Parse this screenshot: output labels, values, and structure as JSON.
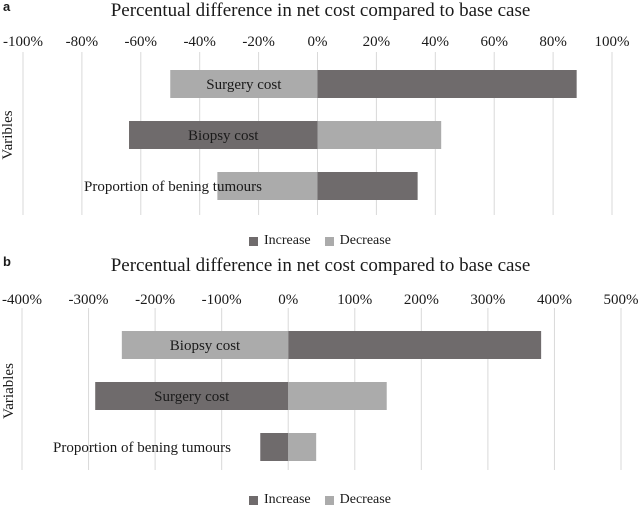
{
  "colors": {
    "increase": "#6f6b6c",
    "decrease": "#ababab",
    "grid": "#d9d9d9"
  },
  "legend": {
    "increase_label": "Increase",
    "decrease_label": "Decrease"
  },
  "chart_data": [
    {
      "panel_label": "a",
      "type": "bar",
      "orientation": "horizontal",
      "title": "Percentual difference in net cost compared to base case",
      "ylabel": "Varibles",
      "xlim": [
        -100,
        100
      ],
      "ticks": [
        -100,
        -80,
        -60,
        -40,
        -20,
        0,
        20,
        40,
        60,
        80,
        100
      ],
      "tick_labels": [
        "-100%",
        "-80%",
        "-60%",
        "-40%",
        "-20%",
        "0%",
        "20%",
        "40%",
        "60%",
        "80%",
        "100%"
      ],
      "grid": true,
      "legend_position": "bottom",
      "categories": [
        "Surgery cost",
        "Biopsy cost",
        "Proportion of bening tumours"
      ],
      "series": [
        {
          "name": "Increase",
          "values": [
            88,
            -64,
            34
          ]
        },
        {
          "name": "Decrease",
          "values": [
            -50,
            42,
            -34
          ]
        }
      ]
    },
    {
      "panel_label": "b",
      "type": "bar",
      "orientation": "horizontal",
      "title": "Percentual difference in net cost compared to base case",
      "ylabel": "Variables",
      "xlim": [
        -400,
        500
      ],
      "ticks": [
        -400,
        -300,
        -200,
        -100,
        0,
        100,
        200,
        300,
        400,
        500
      ],
      "tick_labels": [
        "-400%",
        "-300%",
        "-200%",
        "-100%",
        "0%",
        "100%",
        "200%",
        "300%",
        "400%",
        "500%"
      ],
      "grid": true,
      "legend_position": "bottom",
      "categories": [
        "Biopsy cost",
        "Surgery cost",
        "Proportion of bening tumours"
      ],
      "series": [
        {
          "name": "Increase",
          "values": [
            380,
            -290,
            -42
          ]
        },
        {
          "name": "Decrease",
          "values": [
            -250,
            148,
            42
          ]
        }
      ]
    }
  ]
}
